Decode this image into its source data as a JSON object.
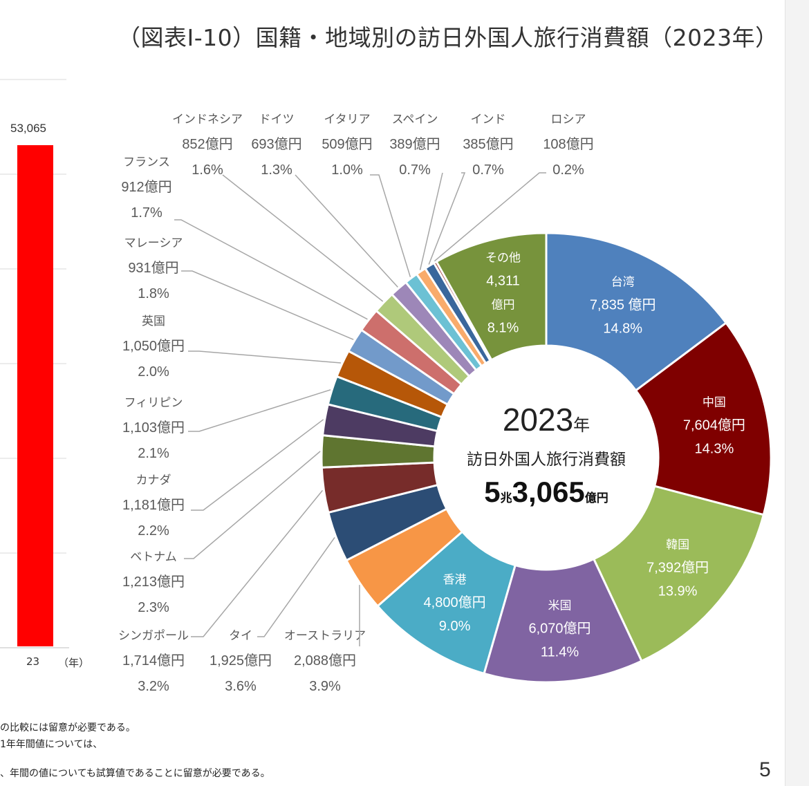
{
  "title": "（図表Ⅰ-10）国籍・地域別の訪日外国人旅行消費額（2023年）",
  "page_number": "5",
  "notes": [
    "の比較には留意が必要である。",
    "1年年間値については、",
    "、年間の値についても試算値であることに留意が必要である。"
  ],
  "bar_panel": {
    "value_label": "53,065",
    "x_tick": "23",
    "x_unit": "（年）",
    "bar_color": "#ff0000"
  },
  "center": {
    "year": "2023",
    "year_suffix": "年",
    "subtitle": "訪日外国人旅行消費額",
    "total_big1": "5",
    "total_small1": "兆",
    "total_big2": "3,065",
    "total_small2": "億円"
  },
  "chart_data": [
    {
      "type": "bar",
      "categories": [
        "23"
      ],
      "values": [
        53065
      ],
      "xlabel": "（年）"
    },
    {
      "type": "pie",
      "series": [
        {
          "name": "台湾",
          "value": 7835,
          "value_label": "7,835 億円",
          "percent": "14.8%",
          "color": "#4f81bd"
        },
        {
          "name": "中国",
          "value": 7604,
          "value_label": "7,604億円",
          "percent": "14.3%",
          "color": "#7f0000"
        },
        {
          "name": "韓国",
          "value": 7392,
          "value_label": "7,392億円",
          "percent": "13.9%",
          "color": "#9bbb59"
        },
        {
          "name": "米国",
          "value": 6070,
          "value_label": "6,070億円",
          "percent": "11.4%",
          "color": "#8064a2"
        },
        {
          "name": "香港",
          "value": 4800,
          "value_label": "4,800億円",
          "percent": "9.0%",
          "color": "#4bacc6"
        },
        {
          "name": "オーストラリア",
          "value": 2088,
          "value_label": "2,088億円",
          "percent": "3.9%",
          "color": "#f79646"
        },
        {
          "name": "タイ",
          "value": 1925,
          "value_label": "1,925億円",
          "percent": "3.6%",
          "color": "#2c4d75"
        },
        {
          "name": "シンガポール",
          "value": 1714,
          "value_label": "1,714億円",
          "percent": "3.2%",
          "color": "#772c2a"
        },
        {
          "name": "ベトナム",
          "value": 1213,
          "value_label": "1,213億円",
          "percent": "2.3%",
          "color": "#5f7530"
        },
        {
          "name": "カナダ",
          "value": 1181,
          "value_label": "1,181億円",
          "percent": "2.2%",
          "color": "#4d3b62"
        },
        {
          "name": "フィリピン",
          "value": 1103,
          "value_label": "1,103億円",
          "percent": "2.1%",
          "color": "#276a7c"
        },
        {
          "name": "英国",
          "value": 1050,
          "value_label": "1,050億円",
          "percent": "2.0%",
          "color": "#b65708"
        },
        {
          "name": "マレーシア",
          "value": 931,
          "value_label": "931億円",
          "percent": "1.8%",
          "color": "#729aca"
        },
        {
          "name": "フランス",
          "value": 912,
          "value_label": "912億円",
          "percent": "1.7%",
          "color": "#cd6f6c"
        },
        {
          "name": "インドネシア",
          "value": 852,
          "value_label": "852億円",
          "percent": "1.6%",
          "color": "#afc97a"
        },
        {
          "name": "ドイツ",
          "value": 693,
          "value_label": "693億円",
          "percent": "1.3%",
          "color": "#9d87b8"
        },
        {
          "name": "イタリア",
          "value": 509,
          "value_label": "509億円",
          "percent": "1.0%",
          "color": "#6cc1d4"
        },
        {
          "name": "スペイン",
          "value": 389,
          "value_label": "389億円",
          "percent": "0.7%",
          "color": "#f9ab6b"
        },
        {
          "name": "インド",
          "value": 385,
          "value_label": "385億円",
          "percent": "0.7%",
          "color": "#3a679c"
        },
        {
          "name": "ロシア",
          "value": 108,
          "value_label": "108億円",
          "percent": "0.2%",
          "color": "#9e3b38"
        },
        {
          "name": "その他",
          "value": 4311,
          "value_label": "4,311",
          "value_unit": "億円",
          "percent": "8.1%",
          "color": "#77933c"
        }
      ]
    }
  ]
}
